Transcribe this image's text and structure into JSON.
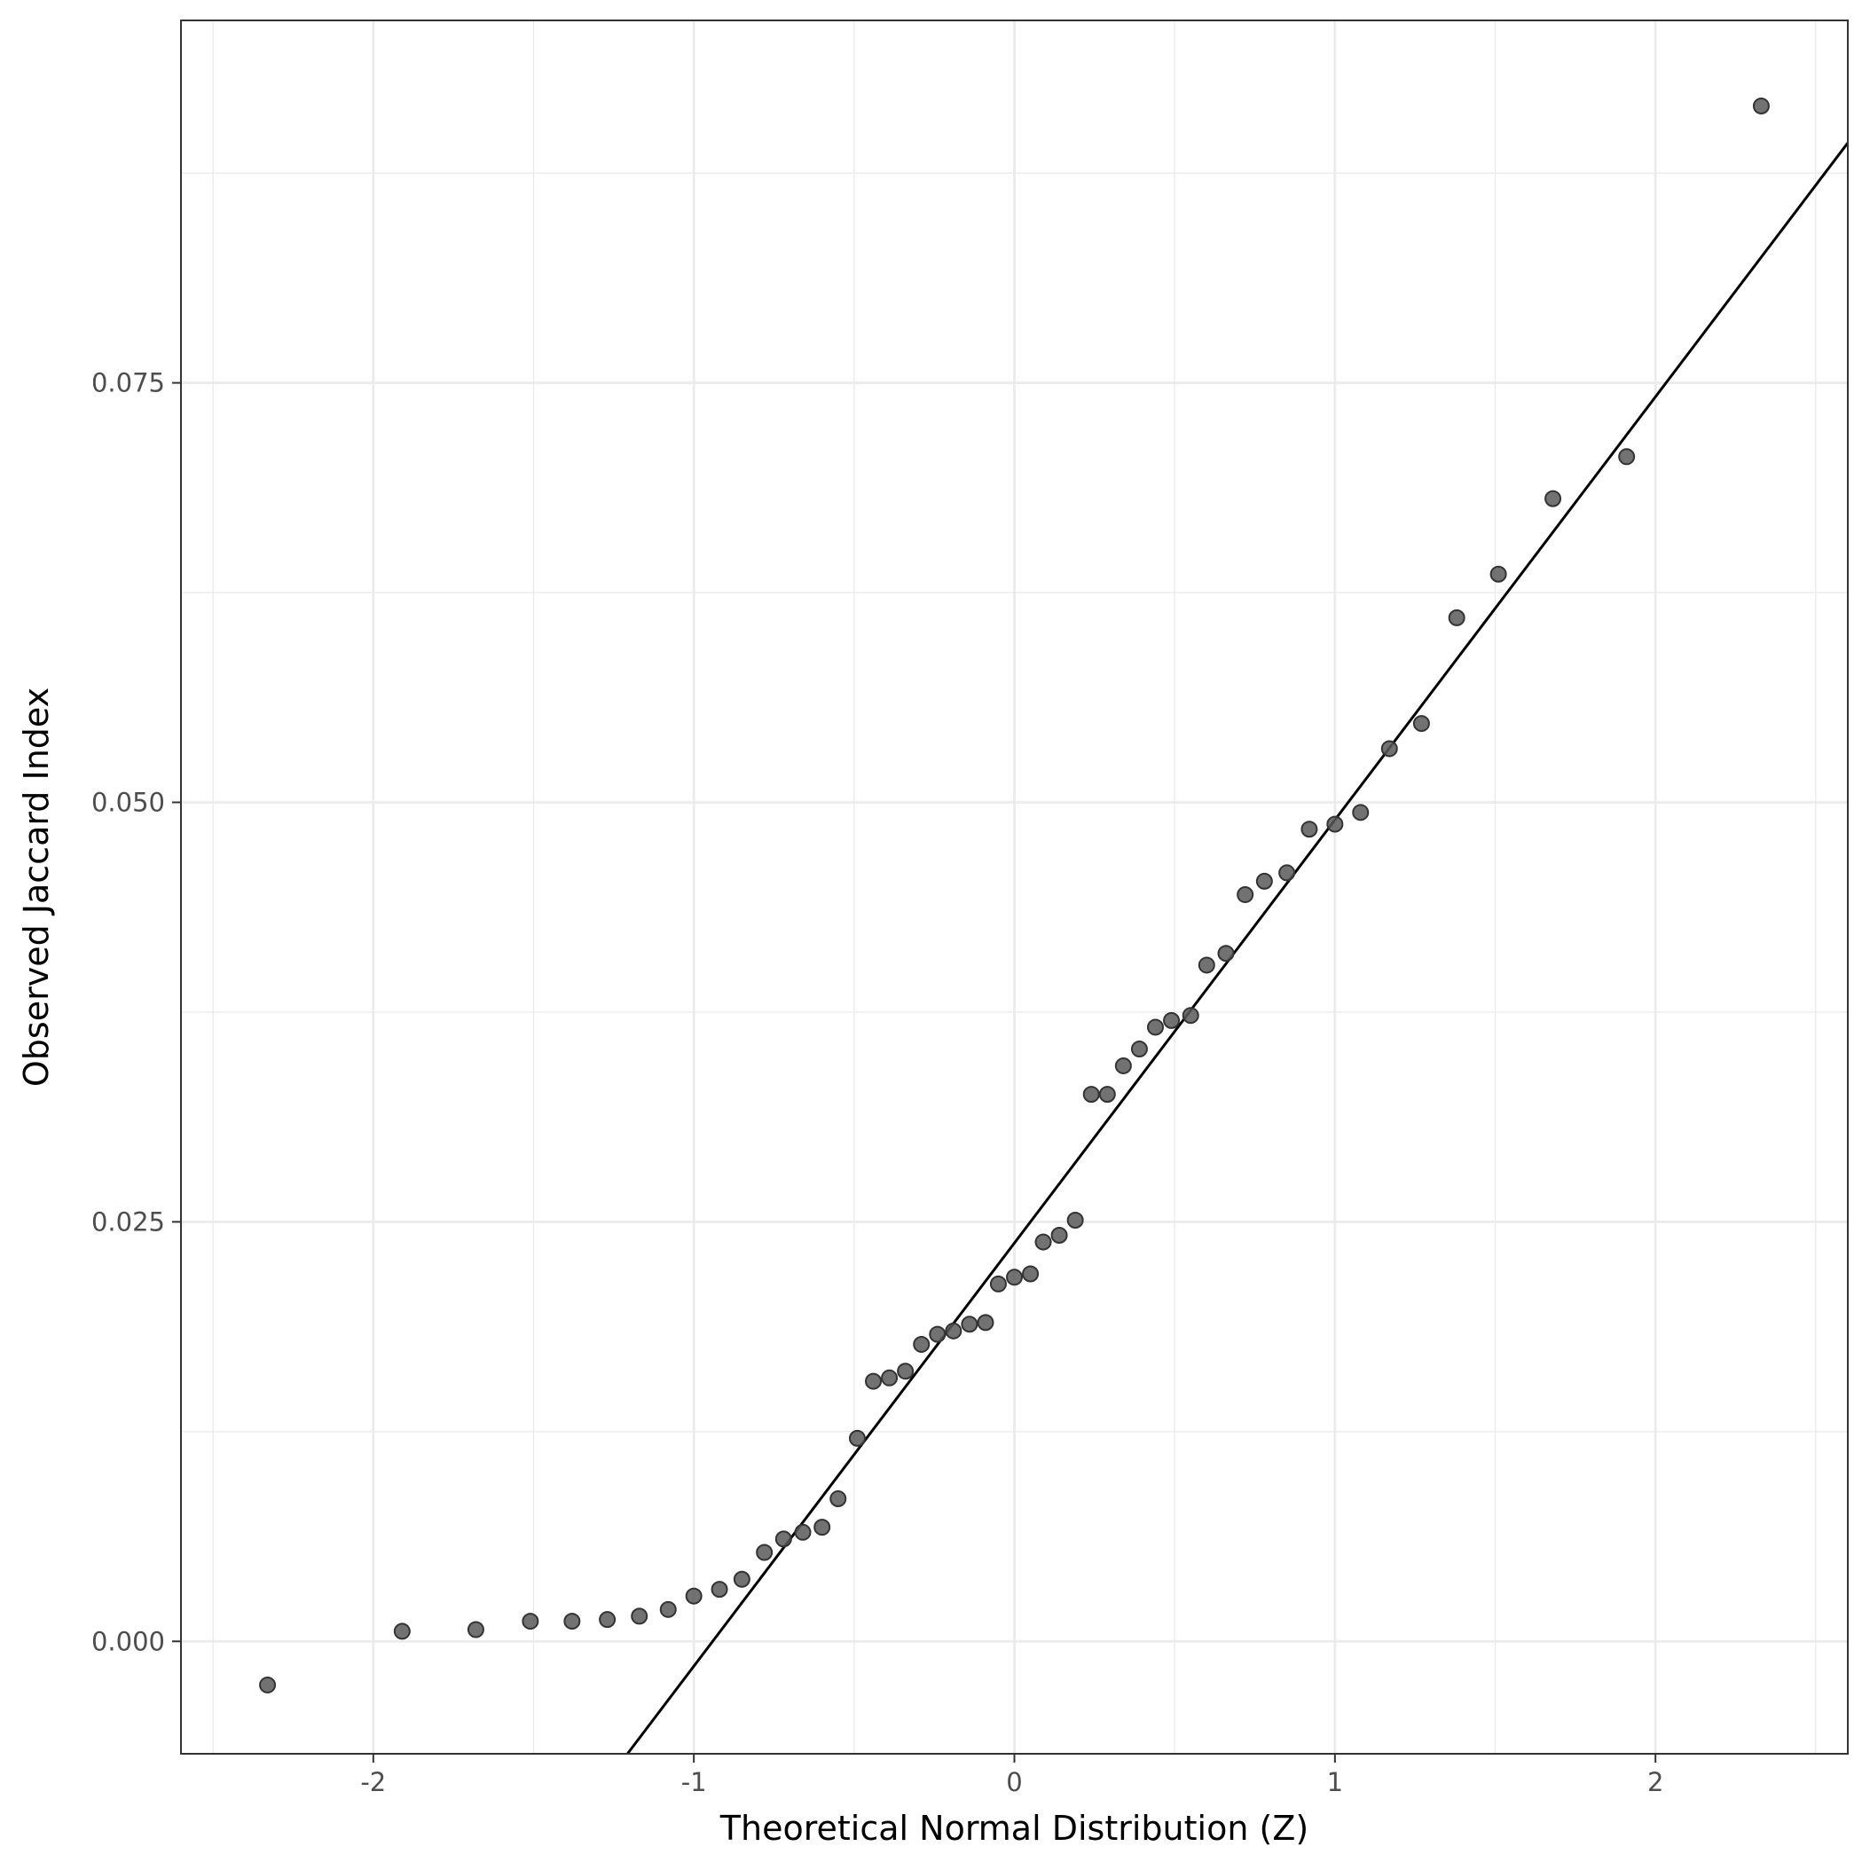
{
  "chart_data": {
    "type": "scatter",
    "title": "",
    "xlabel": "Theoretical Normal Distribution (Z)",
    "ylabel": "Observed Jaccard Index",
    "xlim": [
      -2.6,
      2.6
    ],
    "ylim": [
      -0.0067,
      0.0966
    ],
    "x_ticks": [
      -2,
      -1,
      0,
      1,
      2
    ],
    "x_tick_labels": [
      "-2",
      "-1",
      "0",
      "1",
      "2"
    ],
    "y_ticks": [
      0.0,
      0.025,
      0.05,
      0.075
    ],
    "y_tick_labels": [
      "0.000",
      "0.025",
      "0.050",
      "0.075"
    ],
    "grid": true,
    "colors": {
      "points": "#595959",
      "point_edge": "#333333",
      "line": "#000000",
      "grid": "#ebebeb",
      "panel_border": "#333333"
    },
    "reference_line": {
      "points": [
        [
          -1.207,
          -0.0067
        ],
        [
          2.6,
          0.0893
        ]
      ]
    },
    "points": [
      [
        -2.33,
        -0.0026
      ],
      [
        -1.91,
        0.0006
      ],
      [
        -1.68,
        0.0007
      ],
      [
        -1.51,
        0.0012
      ],
      [
        -1.38,
        0.0012
      ],
      [
        -1.27,
        0.0013
      ],
      [
        -1.17,
        0.0015
      ],
      [
        -1.08,
        0.0019
      ],
      [
        -1.0,
        0.0027
      ],
      [
        -0.92,
        0.0031
      ],
      [
        -0.85,
        0.0037
      ],
      [
        -0.78,
        0.0053
      ],
      [
        -0.72,
        0.0061
      ],
      [
        -0.66,
        0.0065
      ],
      [
        -0.6,
        0.0068
      ],
      [
        -0.55,
        0.0085
      ],
      [
        -0.49,
        0.0121
      ],
      [
        -0.44,
        0.0155
      ],
      [
        -0.39,
        0.0157
      ],
      [
        -0.34,
        0.0161
      ],
      [
        -0.29,
        0.0177
      ],
      [
        -0.24,
        0.0183
      ],
      [
        -0.19,
        0.0185
      ],
      [
        -0.14,
        0.0189
      ],
      [
        -0.09,
        0.019
      ],
      [
        -0.05,
        0.0213
      ],
      [
        0.0,
        0.0217
      ],
      [
        0.05,
        0.0219
      ],
      [
        0.09,
        0.0238
      ],
      [
        0.14,
        0.0242
      ],
      [
        0.19,
        0.0251
      ],
      [
        0.24,
        0.0326
      ],
      [
        0.29,
        0.0326
      ],
      [
        0.34,
        0.0343
      ],
      [
        0.39,
        0.0353
      ],
      [
        0.44,
        0.0366
      ],
      [
        0.49,
        0.037
      ],
      [
        0.55,
        0.0373
      ],
      [
        0.6,
        0.0403
      ],
      [
        0.66,
        0.041
      ],
      [
        0.72,
        0.0445
      ],
      [
        0.78,
        0.0453
      ],
      [
        0.85,
        0.0458
      ],
      [
        0.92,
        0.0484
      ],
      [
        1.0,
        0.0487
      ],
      [
        1.08,
        0.0494
      ],
      [
        1.17,
        0.0532
      ],
      [
        1.27,
        0.0547
      ],
      [
        1.38,
        0.061
      ],
      [
        1.51,
        0.0636
      ],
      [
        1.68,
        0.0681
      ],
      [
        1.91,
        0.0706
      ],
      [
        2.33,
        0.0915
      ]
    ]
  }
}
